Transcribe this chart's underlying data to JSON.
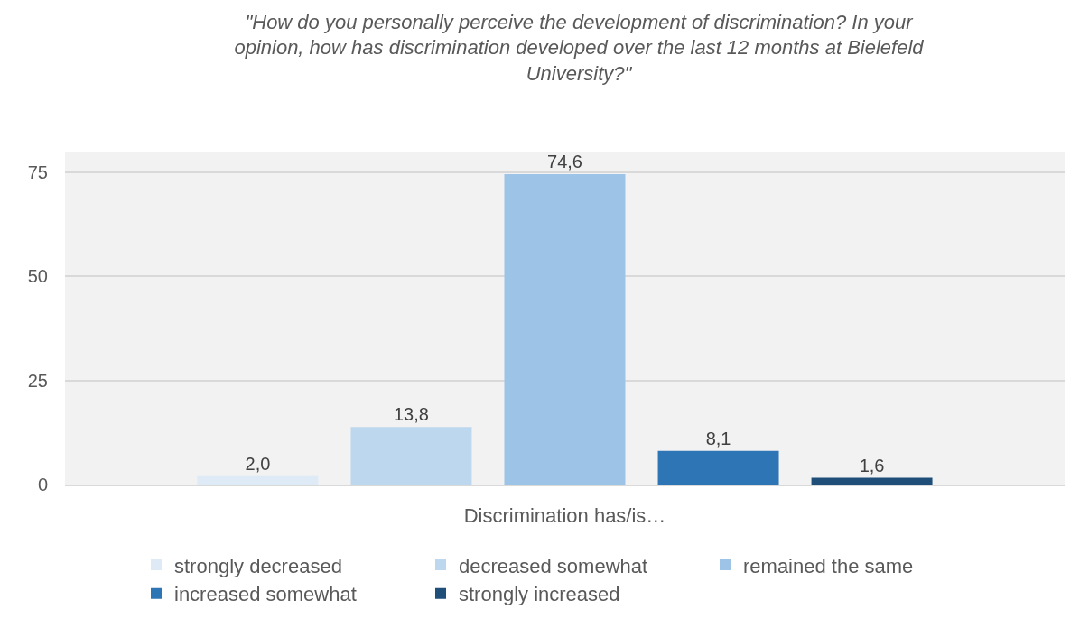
{
  "chart_data": {
    "type": "bar",
    "title": "\"How do you personally perceive the development of discrimination? In your opinion, how has discrimination developed over the last 12 months at Bielefeld University?\"",
    "categories": [
      "Discrimination has/is…"
    ],
    "ylim": [
      0,
      80
    ],
    "yticks": [
      0,
      25,
      50,
      75
    ],
    "grid": "y",
    "legend": "bottom",
    "series": [
      {
        "name": "strongly decreased",
        "color": "#deebf7",
        "values": [
          2.0
        ],
        "value_labels": [
          "2,0"
        ]
      },
      {
        "name": "decreased somewhat",
        "color": "#bdd7ee",
        "values": [
          13.8
        ],
        "value_labels": [
          "13,8"
        ]
      },
      {
        "name": "remained the same",
        "color": "#9dc3e6",
        "values": [
          74.6
        ],
        "value_labels": [
          "74,6"
        ]
      },
      {
        "name": "increased somewhat",
        "color": "#2e75b6",
        "values": [
          8.1
        ],
        "value_labels": [
          "8,1"
        ]
      },
      {
        "name": "strongly increased",
        "color": "#1f4e79",
        "values": [
          1.6
        ],
        "value_labels": [
          "1,6"
        ]
      }
    ]
  }
}
